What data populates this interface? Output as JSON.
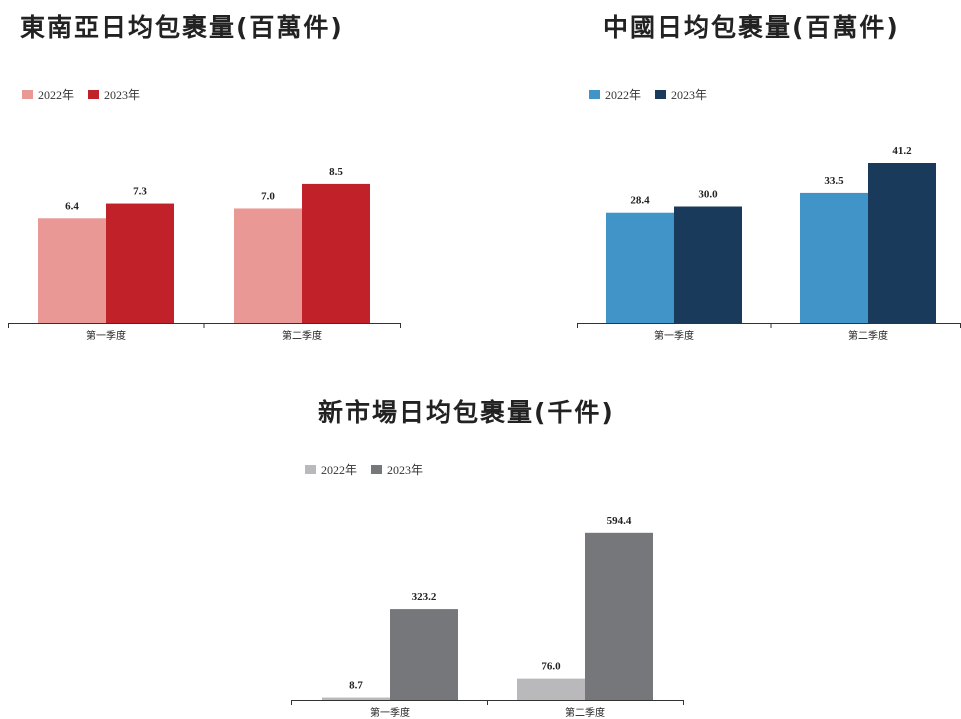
{
  "chart_data": [
    {
      "type": "bar",
      "title": "東南亞日均包裹量(百萬件)",
      "categories": [
        "第一季度",
        "第二季度"
      ],
      "series": [
        {
          "name": "2022年",
          "values": [
            6.4,
            7.0
          ],
          "color": "#EA9895"
        },
        {
          "name": "2023年",
          "values": [
            7.3,
            8.5
          ],
          "color": "#C12128"
        }
      ],
      "value_labels": [
        [
          "6.4",
          "7.0"
        ],
        [
          "7.3",
          "8.5"
        ]
      ],
      "ylim": [
        0,
        11.0
      ],
      "legend": "top-left",
      "grid": false
    },
    {
      "type": "bar",
      "title": "中國日均包裹量(百萬件)",
      "categories": [
        "第一季度",
        "第二季度"
      ],
      "series": [
        {
          "name": "2022年",
          "values": [
            28.4,
            33.5
          ],
          "color": "#4194C8"
        },
        {
          "name": "2023年",
          "values": [
            30.0,
            41.2
          ],
          "color": "#1A3A5C"
        }
      ],
      "value_labels": [
        [
          "28.4",
          "33.5"
        ],
        [
          "30.0",
          "41.2"
        ]
      ],
      "ylim": [
        0,
        51.5
      ],
      "legend": "top-left",
      "grid": false
    },
    {
      "type": "bar",
      "title": "新市場日均包裹量(千件)",
      "categories": [
        "第一季度",
        "第二季度"
      ],
      "series": [
        {
          "name": "2022年",
          "values": [
            8.7,
            76.0
          ],
          "color": "#B9B9BB"
        },
        {
          "name": "2023年",
          "values": [
            323.2,
            594.4
          ],
          "color": "#76777B"
        }
      ],
      "value_labels": [
        [
          "8.7",
          "76.0"
        ],
        [
          "323.2",
          "594.4"
        ]
      ],
      "ylim": [
        0,
        711
      ],
      "legend": "top-left",
      "grid": false
    }
  ]
}
